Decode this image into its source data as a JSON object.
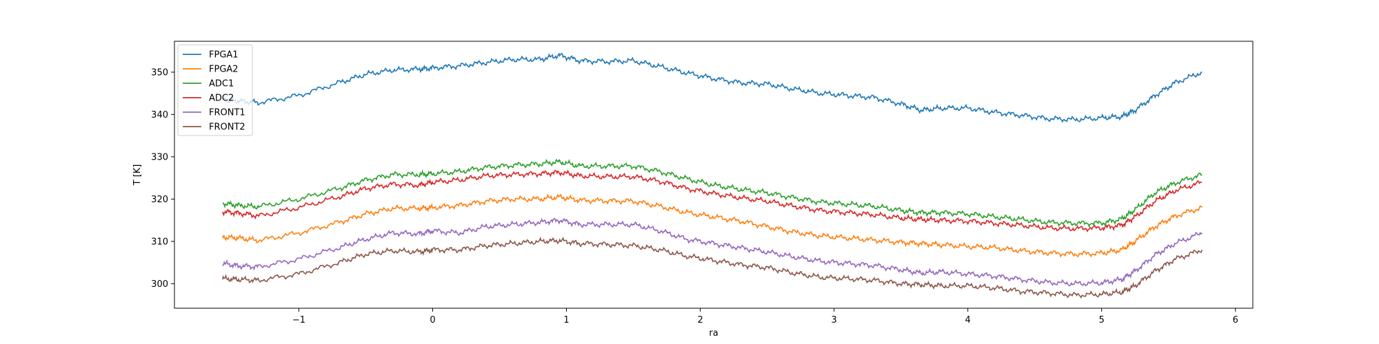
{
  "chart_data": {
    "type": "line",
    "xlabel": "ra",
    "ylabel": "T [K]",
    "xlim": [
      -1.93,
      6.13
    ],
    "ylim": [
      294.2,
      357.3
    ],
    "xticks": [
      -1,
      0,
      1,
      2,
      3,
      4,
      5,
      6
    ],
    "yticks": [
      300,
      310,
      320,
      330,
      340,
      350
    ],
    "grid": false,
    "legend_position": "top-left",
    "x": [
      -1.57,
      -1.45,
      -1.3,
      -1.0,
      -0.7,
      -0.5,
      -0.3,
      -0.1,
      0.0,
      0.2,
      0.4,
      0.6,
      0.8,
      0.95,
      1.1,
      1.3,
      1.5,
      1.7,
      1.9,
      2.1,
      2.3,
      2.5,
      2.7,
      2.9,
      3.1,
      3.3,
      3.5,
      3.65,
      3.8,
      4.0,
      4.2,
      4.4,
      4.6,
      4.8,
      5.0,
      5.15,
      5.25,
      5.4,
      5.55,
      5.75
    ],
    "series": [
      {
        "name": "FPGA1",
        "color": "#1f77b4",
        "values": [
          343.5,
          343.2,
          342.8,
          344.5,
          347.5,
          349.5,
          350.5,
          350.7,
          351.0,
          351.5,
          352.3,
          353.0,
          353.0,
          354.0,
          352.7,
          352.5,
          352.7,
          351.3,
          349.8,
          348.5,
          347.5,
          347.2,
          346.0,
          345.0,
          344.5,
          344.0,
          342.5,
          341.0,
          341.5,
          341.5,
          340.5,
          339.8,
          339.0,
          338.8,
          339.2,
          339.5,
          341.0,
          344.5,
          347.5,
          350.0
        ]
      },
      {
        "name": "FPGA2",
        "color": "#ff7f0e",
        "values": [
          311.0,
          310.8,
          310.2,
          312.0,
          314.5,
          316.5,
          317.8,
          317.8,
          318.0,
          318.5,
          319.5,
          320.0,
          320.0,
          320.5,
          319.7,
          319.6,
          319.5,
          318.3,
          316.8,
          315.8,
          314.8,
          313.5,
          312.2,
          311.3,
          310.8,
          310.3,
          309.8,
          309.5,
          309.2,
          308.8,
          308.5,
          307.8,
          307.3,
          307.0,
          307.2,
          308.0,
          310.0,
          313.5,
          316.0,
          318.0
        ]
      },
      {
        "name": "ADC1",
        "color": "#2ca02c",
        "values": [
          319.0,
          318.5,
          318.2,
          320.0,
          322.5,
          324.5,
          325.8,
          325.8,
          326.0,
          326.5,
          327.5,
          328.0,
          328.3,
          328.8,
          327.8,
          327.8,
          327.8,
          326.5,
          324.8,
          323.3,
          322.3,
          321.5,
          320.3,
          319.3,
          318.8,
          318.3,
          317.3,
          316.8,
          316.8,
          316.5,
          315.8,
          315.2,
          314.5,
          314.3,
          314.3,
          315.3,
          317.5,
          321.5,
          323.8,
          325.8
        ]
      },
      {
        "name": "ADC2",
        "color": "#d62728",
        "values": [
          317.0,
          316.7,
          316.0,
          318.0,
          320.5,
          322.5,
          323.5,
          323.3,
          324.0,
          324.5,
          325.5,
          325.8,
          326.0,
          326.3,
          325.5,
          325.3,
          325.3,
          324.2,
          322.5,
          321.3,
          320.3,
          319.5,
          318.3,
          317.3,
          316.8,
          316.3,
          315.5,
          315.2,
          315.0,
          314.8,
          314.3,
          313.8,
          313.2,
          313.0,
          313.2,
          313.8,
          315.8,
          319.5,
          322.0,
          324.0
        ]
      },
      {
        "name": "FRONT1",
        "color": "#9467bd",
        "values": [
          304.8,
          304.2,
          304.0,
          305.8,
          308.5,
          310.5,
          312.0,
          311.8,
          312.5,
          312.0,
          313.5,
          314.0,
          314.5,
          315.0,
          314.0,
          314.0,
          314.0,
          312.5,
          310.5,
          309.5,
          308.5,
          307.5,
          306.3,
          305.3,
          304.8,
          304.3,
          303.3,
          302.5,
          302.8,
          302.3,
          301.8,
          301.0,
          300.3,
          300.0,
          300.2,
          301.0,
          303.0,
          306.8,
          309.5,
          312.0
        ]
      },
      {
        "name": "FRONT2",
        "color": "#8c564b",
        "values": [
          301.2,
          301.0,
          300.8,
          302.3,
          305.0,
          307.0,
          307.8,
          307.5,
          308.0,
          308.0,
          309.0,
          309.5,
          310.0,
          310.2,
          309.5,
          309.3,
          309.0,
          308.0,
          306.5,
          305.5,
          304.5,
          303.8,
          302.5,
          301.5,
          301.2,
          300.8,
          300.0,
          299.8,
          299.5,
          299.5,
          299.0,
          298.2,
          297.8,
          297.3,
          297.5,
          298.0,
          299.5,
          303.0,
          305.8,
          308.0
        ]
      }
    ]
  }
}
